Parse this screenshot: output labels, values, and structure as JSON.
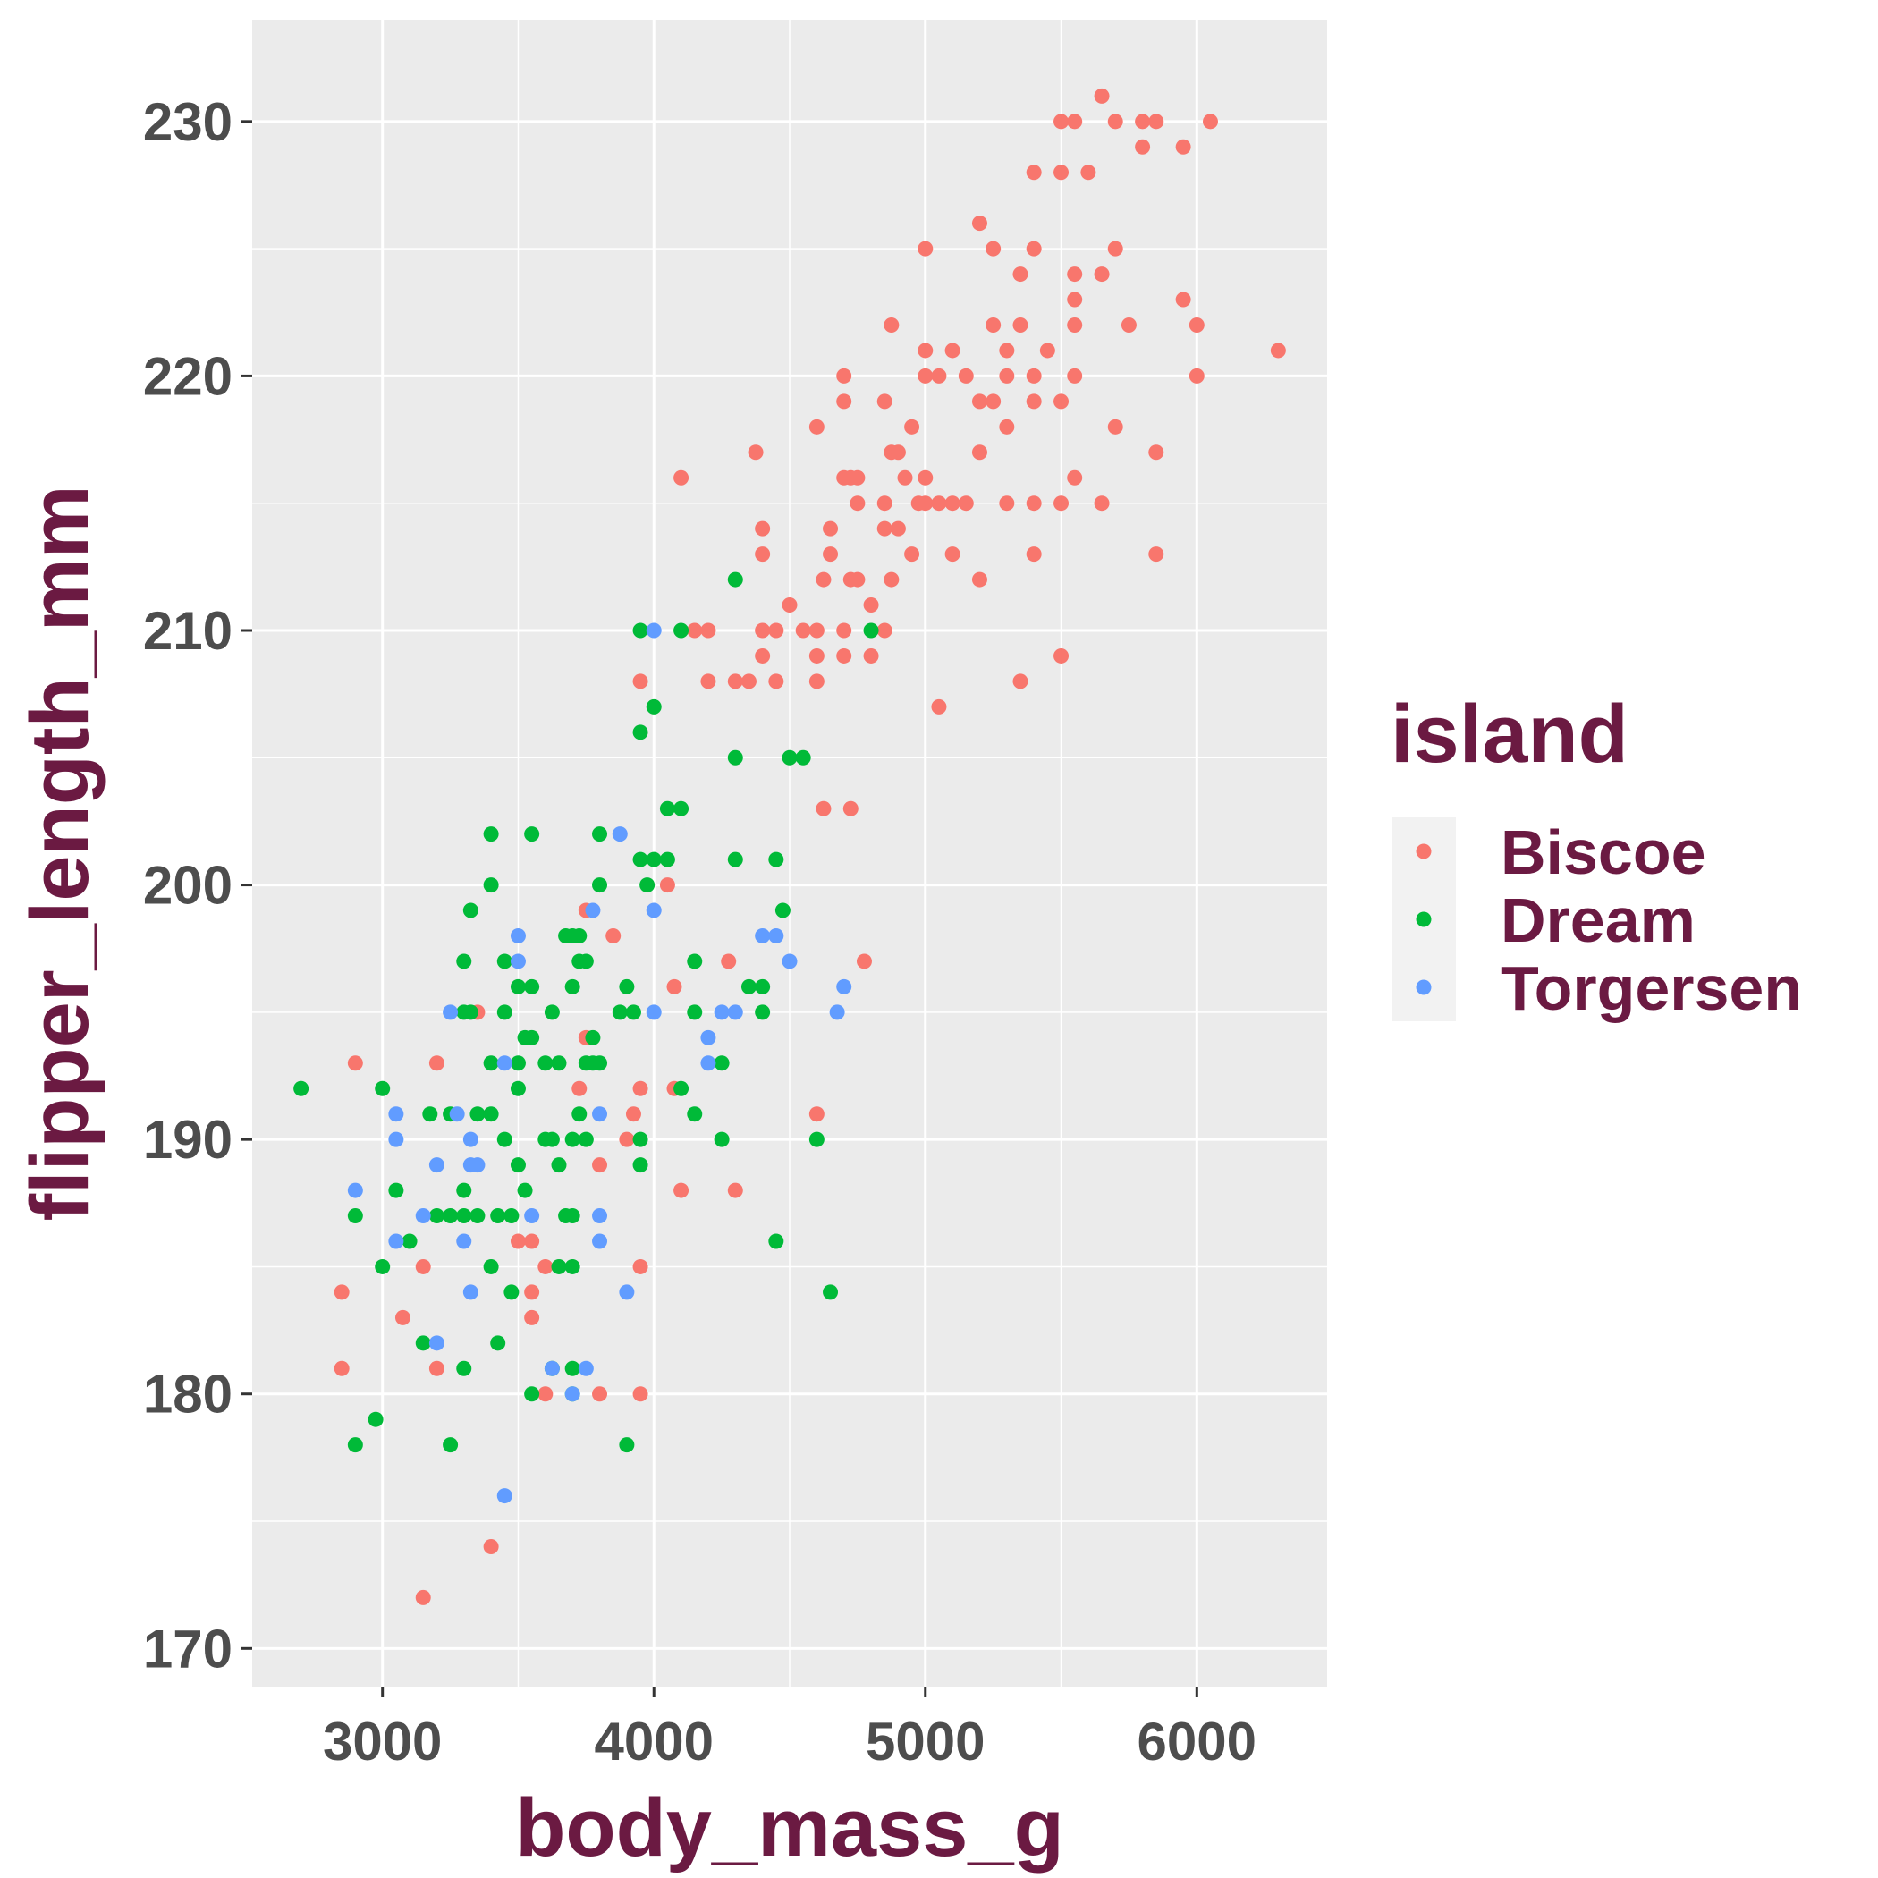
{
  "chart_data": {
    "type": "scatter",
    "xlabel": "body_mass_g",
    "ylabel": "flipper_length_mm",
    "xlim": [
      2520,
      6480
    ],
    "ylim": [
      168.5,
      234.0
    ],
    "x_ticks": [
      3000,
      4000,
      5000,
      6000
    ],
    "y_ticks": [
      170,
      180,
      190,
      200,
      210,
      220,
      230
    ],
    "x_tick_labels": [
      "3000",
      "4000",
      "5000",
      "6000"
    ],
    "y_tick_labels": [
      "170",
      "180",
      "190",
      "200",
      "210",
      "220",
      "230"
    ],
    "grid": true,
    "background": "#ebebeb",
    "legend": {
      "title": "island",
      "placement": "right"
    },
    "series": [
      {
        "name": "Biscoe",
        "color": "#f8766d",
        "points": [
          [
            5650,
            231
          ],
          [
            5500,
            230
          ],
          [
            5550,
            230
          ],
          [
            5700,
            230
          ],
          [
            5800,
            230
          ],
          [
            5850,
            230
          ],
          [
            6050,
            230
          ],
          [
            5800,
            229
          ],
          [
            5950,
            229
          ],
          [
            5500,
            228
          ],
          [
            5400,
            228
          ],
          [
            5600,
            228
          ],
          [
            5200,
            226
          ],
          [
            5000,
            225
          ],
          [
            5250,
            225
          ],
          [
            5400,
            225
          ],
          [
            5700,
            225
          ],
          [
            5350,
            224
          ],
          [
            5550,
            224
          ],
          [
            5650,
            224
          ],
          [
            5550,
            223
          ],
          [
            5950,
            223
          ],
          [
            4875,
            222
          ],
          [
            5250,
            222
          ],
          [
            5350,
            222
          ],
          [
            5550,
            222
          ],
          [
            5750,
            222
          ],
          [
            6000,
            222
          ],
          [
            5000,
            221
          ],
          [
            5100,
            221
          ],
          [
            5300,
            221
          ],
          [
            5450,
            221
          ],
          [
            6300,
            221
          ],
          [
            4700,
            220
          ],
          [
            5000,
            220
          ],
          [
            5050,
            220
          ],
          [
            5150,
            220
          ],
          [
            5300,
            220
          ],
          [
            5400,
            220
          ],
          [
            5550,
            220
          ],
          [
            6000,
            220
          ],
          [
            4700,
            219
          ],
          [
            4850,
            219
          ],
          [
            5200,
            219
          ],
          [
            5250,
            219
          ],
          [
            5400,
            219
          ],
          [
            5500,
            219
          ],
          [
            4600,
            218
          ],
          [
            4950,
            218
          ],
          [
            5300,
            218
          ],
          [
            5700,
            218
          ],
          [
            4375,
            217
          ],
          [
            4875,
            217
          ],
          [
            4900,
            217
          ],
          [
            5200,
            217
          ],
          [
            5850,
            217
          ],
          [
            4100,
            216
          ],
          [
            4700,
            216
          ],
          [
            4725,
            216
          ],
          [
            4750,
            216
          ],
          [
            4925,
            216
          ],
          [
            5000,
            216
          ],
          [
            5550,
            216
          ],
          [
            4750,
            215
          ],
          [
            4850,
            215
          ],
          [
            4975,
            215
          ],
          [
            5000,
            215
          ],
          [
            5050,
            215
          ],
          [
            5100,
            215
          ],
          [
            5150,
            215
          ],
          [
            5300,
            215
          ],
          [
            5400,
            215
          ],
          [
            5500,
            215
          ],
          [
            5650,
            215
          ],
          [
            4400,
            214
          ],
          [
            4650,
            214
          ],
          [
            4850,
            214
          ],
          [
            4900,
            214
          ],
          [
            4400,
            213
          ],
          [
            4650,
            213
          ],
          [
            4950,
            213
          ],
          [
            5100,
            213
          ],
          [
            5400,
            213
          ],
          [
            5850,
            213
          ],
          [
            4625,
            212
          ],
          [
            4725,
            212
          ],
          [
            4750,
            212
          ],
          [
            4875,
            212
          ],
          [
            5200,
            212
          ],
          [
            4500,
            211
          ],
          [
            4800,
            211
          ],
          [
            4150,
            210
          ],
          [
            4200,
            210
          ],
          [
            4400,
            210
          ],
          [
            4450,
            210
          ],
          [
            4550,
            210
          ],
          [
            4600,
            210
          ],
          [
            4700,
            210
          ],
          [
            4850,
            210
          ],
          [
            4400,
            209
          ],
          [
            4600,
            209
          ],
          [
            4700,
            209
          ],
          [
            4800,
            209
          ],
          [
            5500,
            209
          ],
          [
            3950,
            208
          ],
          [
            4200,
            208
          ],
          [
            4300,
            208
          ],
          [
            4350,
            208
          ],
          [
            4450,
            208
          ],
          [
            4600,
            208
          ],
          [
            5350,
            208
          ],
          [
            5050,
            207
          ],
          [
            4625,
            203
          ],
          [
            4725,
            203
          ],
          [
            4050,
            200
          ],
          [
            3750,
            199
          ],
          [
            3850,
            198
          ],
          [
            4275,
            197
          ],
          [
            4775,
            197
          ],
          [
            3350,
            195
          ],
          [
            4075,
            196
          ],
          [
            3750,
            194
          ],
          [
            3200,
            193
          ],
          [
            2900,
            193
          ],
          [
            3800,
            189
          ],
          [
            3725,
            192
          ],
          [
            3950,
            192
          ],
          [
            4075,
            192
          ],
          [
            3925,
            191
          ],
          [
            4600,
            191
          ],
          [
            3900,
            190
          ],
          [
            4300,
            188
          ],
          [
            4100,
            188
          ],
          [
            3500,
            186
          ],
          [
            3550,
            186
          ],
          [
            3150,
            185
          ],
          [
            3600,
            185
          ],
          [
            3950,
            185
          ],
          [
            3550,
            184
          ],
          [
            2850,
            184
          ],
          [
            3550,
            183
          ],
          [
            3075,
            183
          ],
          [
            2850,
            181
          ],
          [
            3200,
            181
          ],
          [
            3600,
            180
          ],
          [
            3800,
            180
          ],
          [
            3950,
            180
          ],
          [
            3400,
            174
          ],
          [
            3150,
            172
          ]
        ]
      },
      {
        "name": "Dream",
        "color": "#00ba38",
        "points": [
          [
            4300,
            212
          ],
          [
            3950,
            210
          ],
          [
            4100,
            210
          ],
          [
            4800,
            210
          ],
          [
            4000,
            207
          ],
          [
            3950,
            206
          ],
          [
            4300,
            205
          ],
          [
            4500,
            205
          ],
          [
            4550,
            205
          ],
          [
            4050,
            203
          ],
          [
            4100,
            203
          ],
          [
            3400,
            202
          ],
          [
            3550,
            202
          ],
          [
            3800,
            202
          ],
          [
            3950,
            201
          ],
          [
            4000,
            201
          ],
          [
            4050,
            201
          ],
          [
            4300,
            201
          ],
          [
            4450,
            201
          ],
          [
            3400,
            200
          ],
          [
            3800,
            200
          ],
          [
            3975,
            200
          ],
          [
            3325,
            199
          ],
          [
            4475,
            199
          ],
          [
            3675,
            198
          ],
          [
            3700,
            198
          ],
          [
            3725,
            198
          ],
          [
            3300,
            197
          ],
          [
            3450,
            197
          ],
          [
            3725,
            197
          ],
          [
            3750,
            197
          ],
          [
            4150,
            197
          ],
          [
            3500,
            196
          ],
          [
            3550,
            196
          ],
          [
            3700,
            196
          ],
          [
            3900,
            196
          ],
          [
            4350,
            196
          ],
          [
            4400,
            196
          ],
          [
            3300,
            195
          ],
          [
            3325,
            195
          ],
          [
            3450,
            195
          ],
          [
            3625,
            195
          ],
          [
            3875,
            195
          ],
          [
            3925,
            195
          ],
          [
            4150,
            195
          ],
          [
            4400,
            195
          ],
          [
            3525,
            194
          ],
          [
            3550,
            194
          ],
          [
            3775,
            194
          ],
          [
            3400,
            193
          ],
          [
            3500,
            193
          ],
          [
            3600,
            193
          ],
          [
            3650,
            193
          ],
          [
            3750,
            193
          ],
          [
            3775,
            193
          ],
          [
            3800,
            193
          ],
          [
            4250,
            193
          ],
          [
            3500,
            192
          ],
          [
            4100,
            192
          ],
          [
            2700,
            192
          ],
          [
            3000,
            192
          ],
          [
            3175,
            191
          ],
          [
            3250,
            191
          ],
          [
            3350,
            191
          ],
          [
            3400,
            191
          ],
          [
            3725,
            191
          ],
          [
            4150,
            191
          ],
          [
            3450,
            190
          ],
          [
            3600,
            190
          ],
          [
            3625,
            190
          ],
          [
            3700,
            190
          ],
          [
            3750,
            190
          ],
          [
            3950,
            190
          ],
          [
            4250,
            190
          ],
          [
            4600,
            190
          ],
          [
            3500,
            189
          ],
          [
            3650,
            189
          ],
          [
            3950,
            189
          ],
          [
            3050,
            188
          ],
          [
            3300,
            188
          ],
          [
            3525,
            188
          ],
          [
            2900,
            187
          ],
          [
            3200,
            187
          ],
          [
            3250,
            187
          ],
          [
            3300,
            187
          ],
          [
            3350,
            187
          ],
          [
            3425,
            187
          ],
          [
            3475,
            187
          ],
          [
            3675,
            187
          ],
          [
            3700,
            187
          ],
          [
            3100,
            186
          ],
          [
            4450,
            186
          ],
          [
            3000,
            185
          ],
          [
            3400,
            185
          ],
          [
            3650,
            185
          ],
          [
            3700,
            185
          ],
          [
            3475,
            184
          ],
          [
            4650,
            184
          ],
          [
            3150,
            182
          ],
          [
            3425,
            182
          ],
          [
            3300,
            181
          ],
          [
            3625,
            181
          ],
          [
            3700,
            181
          ],
          [
            3550,
            180
          ],
          [
            3700,
            180
          ],
          [
            2975,
            179
          ],
          [
            2900,
            178
          ],
          [
            3250,
            178
          ],
          [
            3900,
            178
          ]
        ]
      },
      {
        "name": "Torgersen",
        "color": "#619cff",
        "points": [
          [
            4000,
            210
          ],
          [
            3875,
            202
          ],
          [
            4000,
            199
          ],
          [
            3775,
            199
          ],
          [
            3500,
            198
          ],
          [
            4400,
            198
          ],
          [
            4450,
            198
          ],
          [
            3500,
            197
          ],
          [
            4500,
            197
          ],
          [
            4700,
            196
          ],
          [
            3250,
            195
          ],
          [
            4000,
            195
          ],
          [
            4250,
            195
          ],
          [
            4300,
            195
          ],
          [
            4675,
            195
          ],
          [
            4200,
            194
          ],
          [
            3450,
            193
          ],
          [
            4200,
            193
          ],
          [
            3050,
            191
          ],
          [
            3275,
            191
          ],
          [
            3800,
            191
          ],
          [
            3050,
            190
          ],
          [
            3325,
            190
          ],
          [
            3200,
            189
          ],
          [
            3325,
            189
          ],
          [
            3350,
            189
          ],
          [
            2900,
            188
          ],
          [
            3150,
            187
          ],
          [
            3550,
            187
          ],
          [
            3800,
            187
          ],
          [
            3050,
            186
          ],
          [
            3300,
            186
          ],
          [
            3800,
            186
          ],
          [
            3325,
            184
          ],
          [
            3900,
            184
          ],
          [
            3200,
            182
          ],
          [
            3625,
            181
          ],
          [
            3750,
            181
          ],
          [
            3700,
            180
          ],
          [
            3450,
            176
          ]
        ]
      }
    ]
  }
}
